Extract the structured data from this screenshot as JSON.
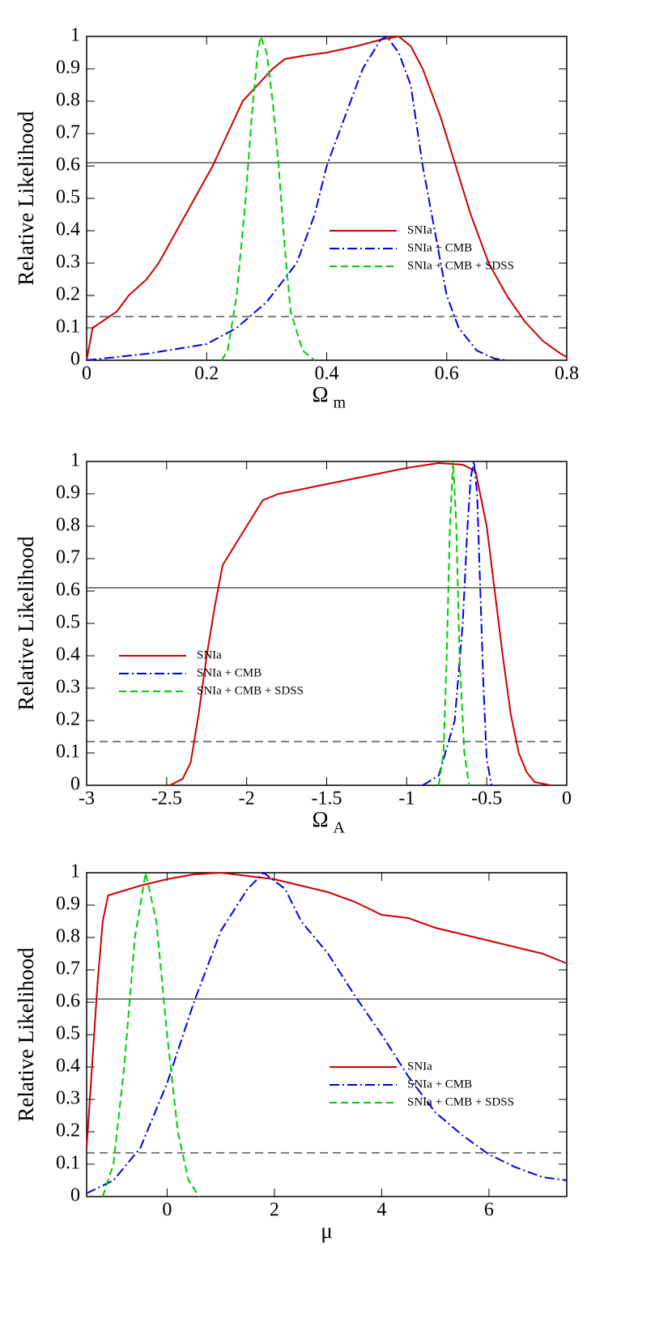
{
  "chart_data": [
    {
      "type": "line",
      "ylabel": "Relative Likelihood",
      "xlabel": "Ω",
      "xlabel_subscript": "m",
      "xlim": [
        0,
        0.8
      ],
      "xticks": [
        0,
        0.2,
        0.4,
        0.6,
        0.8
      ],
      "ylim": [
        0,
        1
      ],
      "yticks": [
        0,
        0.1,
        0.2,
        0.3,
        0.4,
        0.5,
        0.6,
        0.7,
        0.8,
        0.9,
        1
      ],
      "legend": "center right",
      "reference_lines": [
        {
          "value": 0.61,
          "style": "solid"
        },
        {
          "value": 0.135,
          "style": "dashed"
        }
      ],
      "series": [
        {
          "name": "SNIa",
          "color": "#cc0000",
          "dash": "solid",
          "x": [
            0,
            0.01,
            0.05,
            0.07,
            0.1,
            0.12,
            0.15,
            0.18,
            0.21,
            0.235,
            0.26,
            0.285,
            0.31,
            0.33,
            0.36,
            0.4,
            0.45,
            0.49,
            0.52,
            0.54,
            0.56,
            0.59,
            0.615,
            0.64,
            0.67,
            0.7,
            0.73,
            0.76,
            0.79,
            0.8
          ],
          "values": [
            0,
            0.1,
            0.15,
            0.2,
            0.25,
            0.3,
            0.4,
            0.5,
            0.6,
            0.7,
            0.8,
            0.85,
            0.9,
            0.93,
            0.94,
            0.95,
            0.97,
            0.99,
            1.0,
            0.97,
            0.9,
            0.75,
            0.6,
            0.45,
            0.3,
            0.2,
            0.12,
            0.06,
            0.02,
            0.01
          ]
        },
        {
          "name": "SNIa + CMB",
          "color": "#0000dd",
          "dash": "dash-dot",
          "x": [
            0,
            0.1,
            0.2,
            0.25,
            0.3,
            0.35,
            0.38,
            0.4,
            0.43,
            0.46,
            0.49,
            0.5,
            0.52,
            0.54,
            0.56,
            0.58,
            0.6,
            0.62,
            0.65,
            0.68,
            0.7
          ],
          "values": [
            0,
            0.02,
            0.05,
            0.1,
            0.18,
            0.3,
            0.45,
            0.6,
            0.75,
            0.9,
            0.99,
            1.0,
            0.95,
            0.85,
            0.6,
            0.4,
            0.2,
            0.1,
            0.03,
            0.005,
            0
          ]
        },
        {
          "name": "SNIa + CMB + SDSS",
          "color": "#00cc00",
          "dash": "dashed",
          "x": [
            0.225,
            0.235,
            0.25,
            0.265,
            0.275,
            0.285,
            0.29,
            0.3,
            0.31,
            0.32,
            0.33,
            0.34,
            0.36,
            0.38
          ],
          "values": [
            0,
            0.03,
            0.2,
            0.5,
            0.75,
            0.95,
            1.0,
            0.95,
            0.8,
            0.6,
            0.35,
            0.15,
            0.03,
            0
          ]
        }
      ]
    },
    {
      "type": "line",
      "ylabel": "Relative Likelihood",
      "xlabel": "Ω",
      "xlabel_subscript": "A",
      "xlim": [
        -3,
        0
      ],
      "xticks": [
        -3,
        -2.5,
        -2,
        -1.5,
        -1,
        -0.5,
        0
      ],
      "ylim": [
        0,
        1
      ],
      "yticks": [
        0,
        0.1,
        0.2,
        0.3,
        0.4,
        0.5,
        0.6,
        0.7,
        0.8,
        0.9,
        1
      ],
      "legend": "center left",
      "reference_lines": [
        {
          "value": 0.61,
          "style": "solid"
        },
        {
          "value": 0.135,
          "style": "dashed"
        }
      ],
      "series": [
        {
          "name": "SNIa",
          "color": "#cc0000",
          "dash": "solid",
          "x": [
            -2.48,
            -2.4,
            -2.35,
            -2.3,
            -2.25,
            -2.2,
            -2.15,
            -2.0,
            -1.9,
            -1.8,
            -1.6,
            -1.4,
            -1.2,
            -1.0,
            -0.8,
            -0.65,
            -0.57,
            -0.5,
            -0.45,
            -0.4,
            -0.35,
            -0.3,
            -0.25,
            -0.2,
            -0.1
          ],
          "values": [
            0,
            0.02,
            0.07,
            0.22,
            0.4,
            0.55,
            0.68,
            0.8,
            0.88,
            0.9,
            0.92,
            0.94,
            0.96,
            0.98,
            0.995,
            0.99,
            0.97,
            0.8,
            0.6,
            0.4,
            0.22,
            0.1,
            0.04,
            0.01,
            0
          ]
        },
        {
          "name": "SNIa + CMB",
          "color": "#0000dd",
          "dash": "dash-dot",
          "x": [
            -0.9,
            -0.8,
            -0.7,
            -0.65,
            -0.62,
            -0.6,
            -0.58,
            -0.56,
            -0.54,
            -0.52,
            -0.5,
            -0.47
          ],
          "values": [
            0,
            0.03,
            0.2,
            0.5,
            0.8,
            0.95,
            1.0,
            0.9,
            0.6,
            0.3,
            0.08,
            0
          ]
        },
        {
          "name": "SNIa + CMB + SDSS",
          "color": "#00cc00",
          "dash": "dashed",
          "x": [
            -0.8,
            -0.77,
            -0.75,
            -0.73,
            -0.71,
            -0.69,
            -0.67,
            -0.64,
            -0.61
          ],
          "values": [
            0,
            0.1,
            0.4,
            0.8,
            1.0,
            0.8,
            0.4,
            0.1,
            0
          ]
        }
      ]
    },
    {
      "type": "line",
      "ylabel": "Relative Likelihood",
      "xlabel": "μ",
      "xlim": [
        -1.5,
        7.45
      ],
      "xticks": [
        0,
        2,
        4,
        6
      ],
      "ylim": [
        0,
        1
      ],
      "yticks": [
        0,
        0.1,
        0.2,
        0.3,
        0.4,
        0.5,
        0.6,
        0.7,
        0.8,
        0.9,
        1
      ],
      "legend": "center right",
      "reference_lines": [
        {
          "value": 0.61,
          "style": "solid"
        },
        {
          "value": 0.135,
          "style": "dashed"
        }
      ],
      "series": [
        {
          "name": "SNIa",
          "color": "#cc0000",
          "dash": "solid",
          "x": [
            -1.5,
            -1.4,
            -1.3,
            -1.2,
            -1.1,
            -0.5,
            0,
            0.5,
            1,
            1.5,
            2,
            2.5,
            3,
            3.5,
            4,
            4.5,
            5,
            5.5,
            6,
            6.5,
            7,
            7.45
          ],
          "values": [
            0.15,
            0.4,
            0.65,
            0.85,
            0.93,
            0.96,
            0.98,
            0.995,
            1.0,
            0.99,
            0.98,
            0.96,
            0.94,
            0.91,
            0.87,
            0.86,
            0.83,
            0.81,
            0.79,
            0.77,
            0.75,
            0.72
          ]
        },
        {
          "name": "SNIa + CMB",
          "color": "#0000dd",
          "dash": "dash-dot",
          "x": [
            -1.5,
            -1,
            -0.5,
            0,
            0.5,
            1,
            1.5,
            1.8,
            2.2,
            2.5,
            3,
            3.5,
            4,
            4.5,
            5,
            5.5,
            6,
            6.5,
            7,
            7.45
          ],
          "values": [
            0.01,
            0.05,
            0.15,
            0.35,
            0.6,
            0.82,
            0.95,
            1.0,
            0.95,
            0.85,
            0.75,
            0.62,
            0.5,
            0.37,
            0.26,
            0.19,
            0.13,
            0.09,
            0.06,
            0.05
          ]
        },
        {
          "name": "SNIa + CMB + SDSS",
          "color": "#00cc00",
          "dash": "dashed",
          "x": [
            -1.2,
            -1.0,
            -0.8,
            -0.6,
            -0.4,
            -0.2,
            0,
            0.2,
            0.4,
            0.6
          ],
          "values": [
            0,
            0.1,
            0.4,
            0.8,
            1.0,
            0.85,
            0.5,
            0.2,
            0.05,
            0
          ]
        }
      ]
    }
  ]
}
